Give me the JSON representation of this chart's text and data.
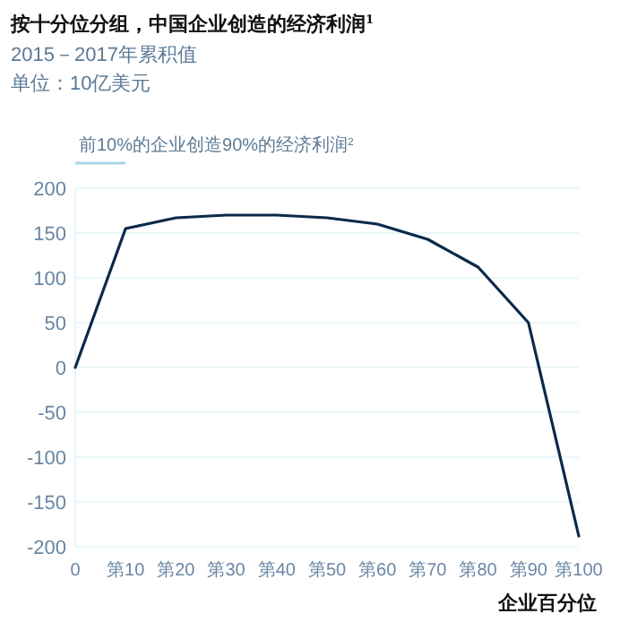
{
  "chart_data": {
    "type": "line",
    "title": "按十分位分组，中国企业创造的经济利润$^{1}$",
    "subtitle": "2015－2017年累积值",
    "xlabel": "企业百分位",
    "annotations": [
      "单位：10亿美元",
      "前10%的企业创造90%的经济利润$^{2}$"
    ],
    "categories": [
      "0",
      "第10",
      "第20",
      "第30",
      "第40",
      "第50",
      "第60",
      "第70",
      "第80",
      "第90",
      "第100"
    ],
    "series": [
      {
        "color": "#0b2a4a",
        "values": [
          0,
          155,
          167,
          170,
          170,
          167,
          160,
          143,
          112,
          50,
          -188
        ]
      }
    ],
    "ylim": [
      -200,
      200
    ],
    "yticks": [
      -200,
      -150,
      -100,
      -50,
      0,
      50,
      100,
      150,
      200
    ],
    "grid": "y",
    "marker": "none",
    "line_style": "solid"
  }
}
